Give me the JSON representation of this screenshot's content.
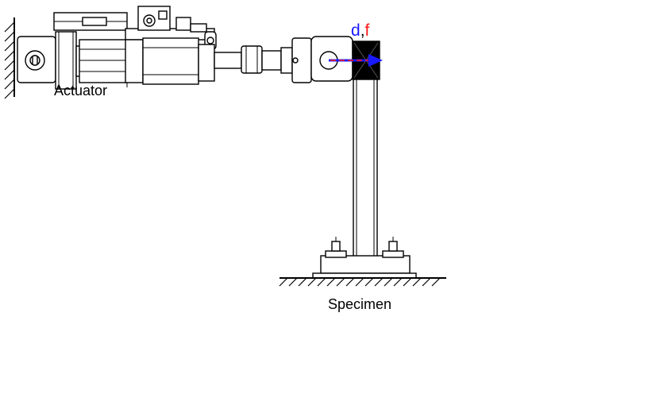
{
  "labels": {
    "actuator": "Actuator",
    "specimen": "Specimen",
    "displacement_symbol": "d",
    "separator": ",",
    "force_symbol": "f"
  },
  "colors": {
    "displacement": "#1a1aff",
    "force": "#ff1a1a",
    "line": "#000000",
    "background": "#ffffff"
  }
}
